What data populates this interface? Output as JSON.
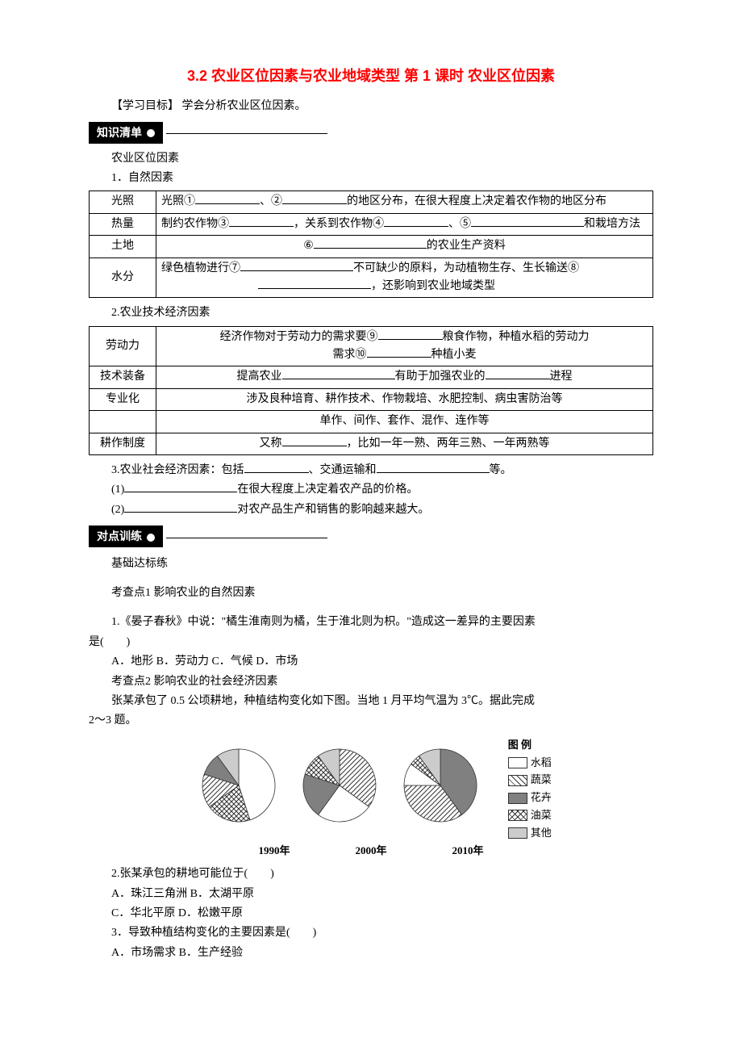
{
  "title": "3.2 农业区位因素与农业地域类型 第 1 课时 农业区位因素",
  "objective_label": "【学习目标】",
  "objective_text": "  学会分析农业区位因素。",
  "section_knowledge": "知识清单",
  "heading_factors": "农业区位因素",
  "heading_natural": "1．自然因素",
  "table1": {
    "rows": [
      {
        "label": "光照",
        "text_a": "光照①",
        "text_b": "、②",
        "text_c": "的地区分布，在很大程度上决定着农作物的地区分布"
      },
      {
        "label": "热量",
        "text_a": "制约农作物③",
        "text_b": "，关系到农作物④",
        "text_c": "、⑤",
        "text_d": "和栽培方法"
      },
      {
        "label": "土地",
        "text_a": "⑥",
        "text_b": "的农业生产资料"
      },
      {
        "label": "水分",
        "line1_a": "绿色植物进行⑦",
        "line1_b": "不可缺少的原料，为动植物生存、生长输送⑧",
        "line2_a": "",
        "line2_b": "，还影响到农业地域类型"
      }
    ]
  },
  "heading_tech": "2.农业技术经济因素",
  "table2": {
    "rows": [
      {
        "label": "劳动力",
        "line1_a": "经济作物对于劳动力的需求要⑨",
        "line1_b": "粮食作物，种植水稻的劳动力",
        "line2_a": "需求⑩",
        "line2_b": "种植小麦"
      },
      {
        "label": "技术装备",
        "text_a": "提高农业",
        "text_b": "有助于加强农业的",
        "text_c": "进程"
      },
      {
        "label": "专业化",
        "text": "涉及良种培育、耕作技术、作物栽培、水肥控制、病虫害防治等"
      },
      {
        "label": "",
        "text": "单作、间作、套作、混作、连作等"
      },
      {
        "label": "耕作制度",
        "text_a": "又称",
        "text_b": "，比如一年一熟、两年三熟、一年两熟等"
      }
    ]
  },
  "heading_social": {
    "a": "3.农业社会经济因素：包括",
    "b": "、交通运输和",
    "c": "等。"
  },
  "sub1": {
    "a": "(1)",
    "b": "在很大程度上决定着农产品的价格。"
  },
  "sub2": {
    "a": "(2)",
    "b": "对农产品生产和销售的影响越来越大。"
  },
  "section_practice": "对点训练",
  "practice_basic": "基础达标练",
  "kq1": "考查点1  影响农业的自然因素",
  "q1": {
    "stem": "1.《晏子春秋》中说：\"橘生淮南则为橘，生于淮北则为枳。\"造成这一差异的主要因素",
    "tail": "是(　　)",
    "opts": "A．地形  B．劳动力  C．气候  D．市场"
  },
  "kq2": "考查点2  影响农业的社会经济因素",
  "q2_intro": {
    "a": "张某承包了 0.5 公顷耕地，种植结构变化如下图。当地 1 月平均气温为 3℃。据此完成",
    "b": "2～3 题。"
  },
  "charts": {
    "years": [
      "1990年",
      "2000年",
      "2010年"
    ],
    "legend_title": "图 例",
    "legend": [
      {
        "name": "水稻",
        "fill": "#ffffff",
        "pattern": "none"
      },
      {
        "name": "蔬菜",
        "fill": "url(#hatch)",
        "pattern": "hatch"
      },
      {
        "name": "花卉",
        "fill": "#808080",
        "pattern": "solid"
      },
      {
        "name": "油菜",
        "fill": "url(#cross)",
        "pattern": "cross"
      },
      {
        "name": "其他",
        "fill": "#cccccc",
        "pattern": "solid"
      }
    ],
    "pies": [
      {
        "slices": [
          {
            "key": "水稻",
            "value": 45
          },
          {
            "key": "油菜",
            "value": 20
          },
          {
            "key": "蔬菜",
            "value": 15
          },
          {
            "key": "花卉",
            "value": 10
          },
          {
            "key": "其他",
            "value": 10
          }
        ]
      },
      {
        "slices": [
          {
            "key": "蔬菜",
            "value": 35
          },
          {
            "key": "水稻",
            "value": 25
          },
          {
            "key": "花卉",
            "value": 20
          },
          {
            "key": "油菜",
            "value": 10
          },
          {
            "key": "其他",
            "value": 10
          }
        ]
      },
      {
        "slices": [
          {
            "key": "花卉",
            "value": 40
          },
          {
            "key": "蔬菜",
            "value": 35
          },
          {
            "key": "水稻",
            "value": 10
          },
          {
            "key": "油菜",
            "value": 5
          },
          {
            "key": "其他",
            "value": 10
          }
        ]
      }
    ],
    "colors": {
      "水稻": "#ffffff",
      "蔬菜": "hatch",
      "花卉": "#808080",
      "油菜": "cross",
      "其他": "#cccccc"
    },
    "radius": 45
  },
  "q2": {
    "stem": "2.张某承包的耕地可能位于(　　)",
    "optA": "A．珠江三角洲  B．太湖平原",
    "optB": "C．华北平原   D．松嫩平原"
  },
  "q3": {
    "stem": "3．导致种植结构变化的主要因素是(　　)",
    "opts": "A．市场需求  B．生产经验"
  }
}
